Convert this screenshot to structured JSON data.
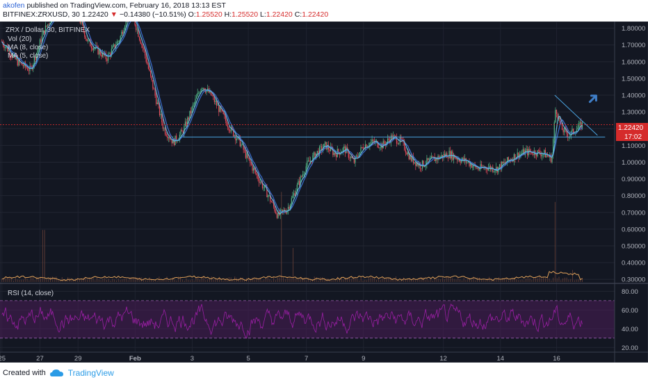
{
  "header": {
    "author": "akofen",
    "published_text": "published on TradingView.com, February 16, 2018 13:13 EST",
    "symbol_line": "BITFINEX:ZRXUSD, 30",
    "last_price": "1.22420",
    "change_arrow": "▼",
    "change": "−0.14380 (−10.51%)",
    "o_label": "O:",
    "o_value": "1.25520",
    "h_label": "H:",
    "h_value": "1.25520",
    "l_label": "L:",
    "l_value": "1.22420",
    "c_label": "C:",
    "c_value": "1.22420"
  },
  "legend": {
    "title": "ZRX / Dollar, 30, BITFINEX",
    "vol": "Vol (20)",
    "ma1": "MA (8, close)",
    "ma2": "MA (5, close)"
  },
  "rsi_label": "RSI (14, close)",
  "price_tag": "1.22420",
  "time_tag": "17:02",
  "colors": {
    "background": "#131722",
    "up": "#53b987",
    "down": "#eb4d5c",
    "ma8": "#3b6fd1",
    "ma5": "#65b5d6",
    "rsi": "#9b1fa5",
    "rsi_band": "#4a1d57",
    "volume_line": "#e0a15a",
    "trendline": "#4aa3df",
    "arrow": "#3f7ec7"
  },
  "footer": {
    "created_with": "Created with",
    "brand": "TradingView"
  },
  "chart_data": [
    {
      "type": "candlestick",
      "title": "ZRX / Dollar, 30, BITFINEX",
      "x_ticks": [
        "25",
        "27",
        "29",
        "Feb",
        "3",
        "5",
        "7",
        "9",
        "12",
        "14",
        "16"
      ],
      "y_ticks": [
        0.3,
        0.4,
        0.5,
        0.6,
        0.7,
        0.8,
        0.9,
        1.0,
        1.1,
        1.2,
        1.3,
        1.4,
        1.5,
        1.6,
        1.7,
        1.8
      ],
      "ylim": [
        0.28,
        1.84
      ],
      "close_path": [
        [
          25,
          1.72
        ],
        [
          25.8,
          1.6
        ],
        [
          26.5,
          1.55
        ],
        [
          27.2,
          1.78
        ],
        [
          28,
          1.95
        ],
        [
          29,
          1.88
        ],
        [
          29.5,
          1.72
        ],
        [
          30.5,
          1.62
        ],
        [
          31.2,
          1.74
        ],
        [
          31.6,
          1.88
        ],
        [
          32,
          1.83
        ],
        [
          32.5,
          1.65
        ],
        [
          33,
          1.42
        ],
        [
          33.5,
          1.2
        ],
        [
          34,
          1.12
        ],
        [
          34.5,
          1.18
        ],
        [
          35,
          1.32
        ],
        [
          35.5,
          1.46
        ],
        [
          36,
          1.4
        ],
        [
          36.5,
          1.3
        ],
        [
          37,
          1.2
        ],
        [
          37.5,
          1.12
        ],
        [
          38,
          1.0
        ],
        [
          38.5,
          0.9
        ],
        [
          39,
          0.8
        ],
        [
          39.5,
          0.68
        ],
        [
          40,
          0.72
        ],
        [
          40.5,
          0.85
        ],
        [
          41,
          0.98
        ],
        [
          41.5,
          1.05
        ],
        [
          42,
          1.1
        ],
        [
          42.5,
          1.05
        ],
        [
          43,
          1.08
        ],
        [
          43.5,
          1.0
        ],
        [
          44,
          1.1
        ],
        [
          44.5,
          1.12
        ],
        [
          45,
          1.1
        ],
        [
          45.5,
          1.15
        ],
        [
          46,
          1.12
        ],
        [
          46.5,
          1.02
        ],
        [
          47,
          0.98
        ],
        [
          47.5,
          1.01
        ],
        [
          48,
          1.03
        ],
        [
          48.5,
          1.05
        ],
        [
          49,
          1.02
        ],
        [
          49.5,
          1.0
        ],
        [
          50,
          0.96
        ],
        [
          50.5,
          0.97
        ],
        [
          51,
          0.96
        ],
        [
          51.5,
          1.0
        ],
        [
          52,
          1.04
        ],
        [
          52.5,
          1.06
        ],
        [
          53,
          1.06
        ],
        [
          53.5,
          1.05
        ],
        [
          53.9,
          1.02
        ],
        [
          54.1,
          1.33
        ],
        [
          54.4,
          1.2
        ],
        [
          54.8,
          1.16
        ],
        [
          55.2,
          1.2
        ],
        [
          55.5,
          1.224
        ]
      ],
      "volume_spikes": [
        [
          27.2,
          0.26
        ],
        [
          39.7,
          0.45
        ],
        [
          40.3,
          0.17
        ],
        [
          54.1,
          0.4
        ],
        [
          55.0,
          0.06
        ]
      ],
      "annotations": {
        "resistance": {
          "x": [
            34.5,
            56.7
          ],
          "y": 1.15
        },
        "wedge_top": {
          "x": [
            54.05,
            56.3
          ],
          "y": [
            1.4,
            1.16
          ]
        },
        "price_line": 1.2242,
        "arrow": "up-right"
      }
    },
    {
      "type": "line",
      "title": "RSI (14, close)",
      "y_ticks": [
        20,
        40,
        60,
        80
      ],
      "ylim": [
        15,
        87
      ],
      "bands": [
        30,
        70
      ]
    }
  ]
}
